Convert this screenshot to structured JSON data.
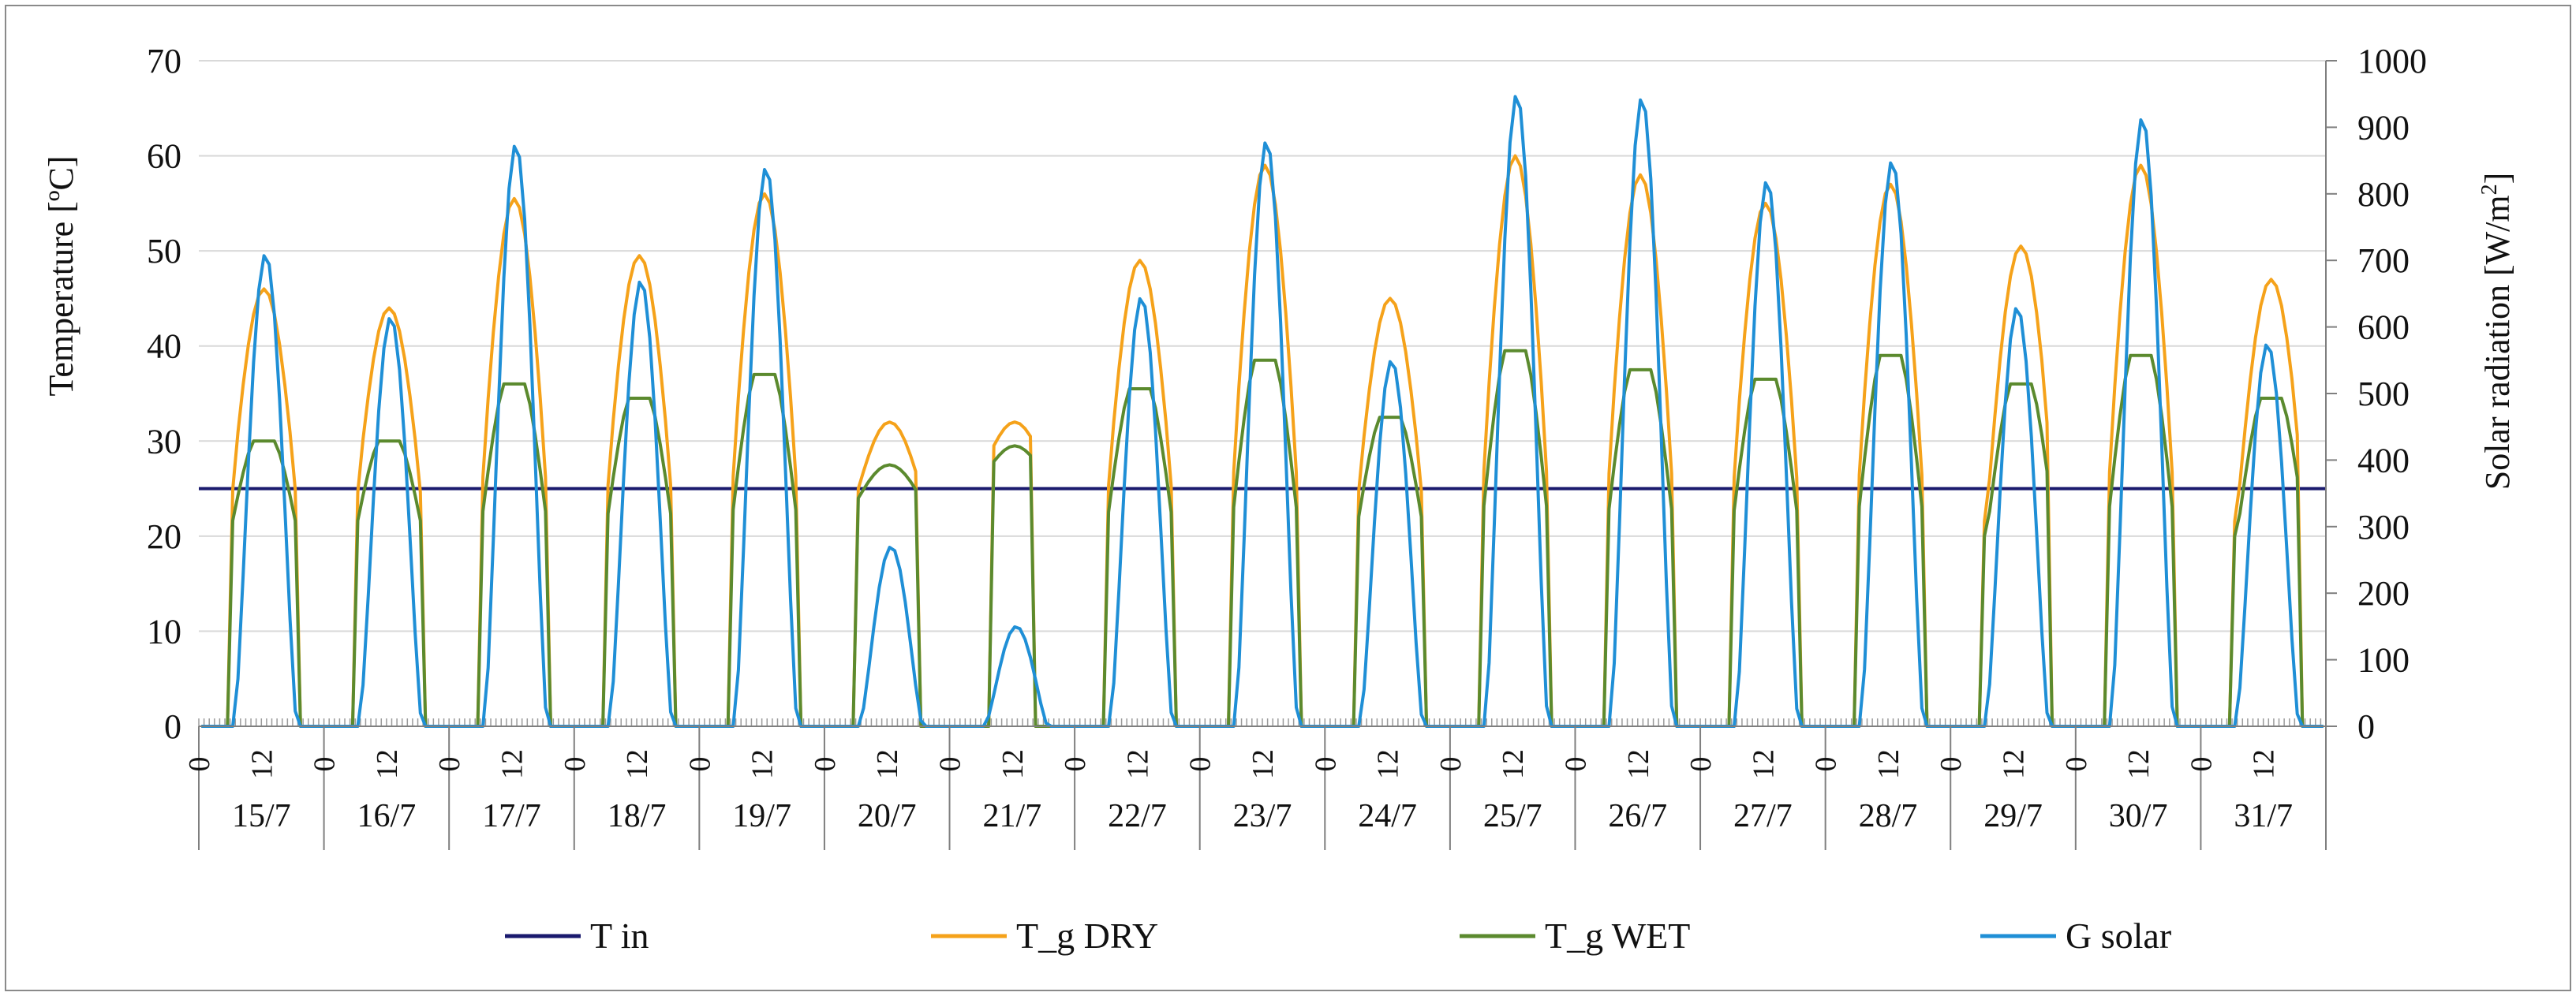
{
  "chart_data": {
    "type": "line",
    "title": "",
    "xlabel": "",
    "ylabel": "Temperature [ºC]",
    "y2label": "Solar radiation [W/m2]",
    "y2label_main": "Solar radiation [W/m",
    "y2label_sup": "2",
    "y2label_end": "]",
    "ylim": [
      0,
      70
    ],
    "y2lim": [
      0,
      1000
    ],
    "yticks": [
      0,
      10,
      20,
      30,
      40,
      50,
      60,
      70
    ],
    "y2ticks": [
      0,
      100,
      200,
      300,
      400,
      500,
      600,
      700,
      800,
      900,
      1000
    ],
    "x_unit": "hour",
    "hour_tick_labels": [
      "0",
      "12"
    ],
    "days": [
      "15/7",
      "16/7",
      "17/7",
      "18/7",
      "19/7",
      "20/7",
      "21/7",
      "22/7",
      "23/7",
      "24/7",
      "25/7",
      "26/7",
      "27/7",
      "28/7",
      "29/7",
      "30/7",
      "31/7"
    ],
    "legend_position": "bottom",
    "series": [
      {
        "name": "T in",
        "axis": "left",
        "color": "#1a1a6e",
        "constant": 25
      },
      {
        "name": "T_g DRY",
        "axis": "left",
        "color": "#f5a21a",
        "daily_peak_hour": [
          12,
          12,
          12,
          12,
          12,
          12,
          12,
          12,
          12,
          12,
          12,
          12,
          12,
          12,
          13,
          12,
          13
        ],
        "daily_max": [
          46,
          44,
          55.5,
          49.5,
          56,
          32,
          32,
          49,
          59,
          45,
          60,
          58,
          55,
          57,
          50.5,
          59,
          47
        ]
      },
      {
        "name": "T_g WET",
        "axis": "left",
        "color": "#5b8a2e",
        "daily_max": [
          30,
          30,
          36,
          34.5,
          37,
          27.5,
          29.5,
          35.5,
          38.5,
          32.5,
          39.5,
          37.5,
          36.5,
          39,
          36,
          39,
          34.5
        ]
      },
      {
        "name": "G solar",
        "axis": "right",
        "color": "#1f8fd6",
        "daily_max": [
          710,
          615,
          875,
          670,
          840,
          270,
          150,
          645,
          880,
          550,
          950,
          945,
          820,
          850,
          630,
          915,
          575
        ]
      }
    ]
  }
}
